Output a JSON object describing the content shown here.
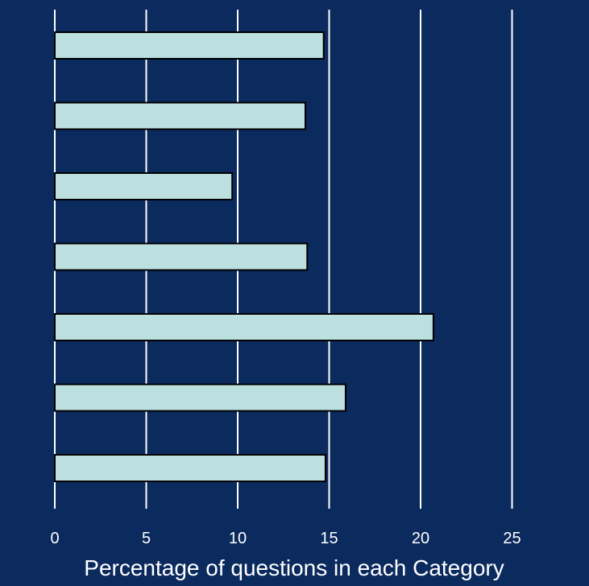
{
  "colors": {
    "background": "#0b2a5e",
    "bar_fill": "#bcdfe0",
    "bar_stroke": "#000000",
    "grid": "#ffffff",
    "text": "#ffffff"
  },
  "chart_data": {
    "type": "bar",
    "orientation": "horizontal",
    "title": "",
    "xlabel": "Percentage of questions in each Category",
    "ylabel": "",
    "xlim": [
      0,
      27
    ],
    "xticks": [
      0,
      5,
      10,
      15,
      20,
      25
    ],
    "grid": true,
    "legend": "none",
    "categories": [
      "",
      "",
      "",
      "",
      "",
      "",
      ""
    ],
    "values": [
      14.7,
      13.7,
      9.7,
      13.8,
      20.7,
      15.9,
      14.8
    ]
  }
}
